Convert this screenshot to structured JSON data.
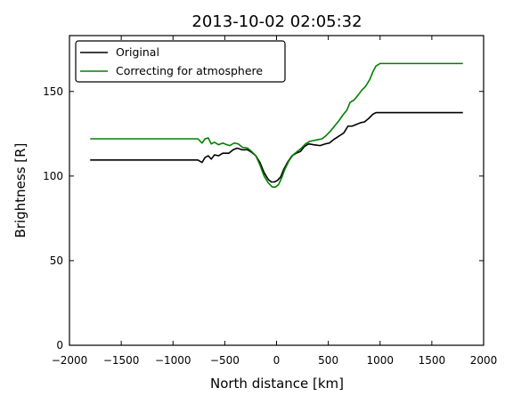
{
  "chart_data": {
    "type": "line",
    "title": "2013-10-02 02:05:32",
    "xlabel": "North distance [km]",
    "ylabel": "Brightness [R]",
    "xlim": [
      -2000,
      2000
    ],
    "ylim": [
      0,
      183
    ],
    "xticks": [
      -2000,
      -1500,
      -1000,
      -500,
      0,
      500,
      1000,
      1500,
      2000
    ],
    "xtick_labels": [
      "−2000",
      "−1500",
      "−1000",
      "−500",
      "0",
      "500",
      "1000",
      "1500",
      "2000"
    ],
    "yticks": [
      0,
      50,
      100,
      150
    ],
    "ytick_labels": [
      "0",
      "50",
      "100",
      "150"
    ],
    "grid": false,
    "legend_position": "top-left",
    "series": [
      {
        "name": "Original",
        "color": "#000000",
        "points": [
          [
            -1800,
            109.5
          ],
          [
            -760,
            109.5
          ],
          [
            -720,
            108
          ],
          [
            -690,
            111
          ],
          [
            -660,
            112
          ],
          [
            -630,
            110
          ],
          [
            -600,
            112.5
          ],
          [
            -560,
            112
          ],
          [
            -520,
            113.5
          ],
          [
            -460,
            113.5
          ],
          [
            -420,
            115.5
          ],
          [
            -380,
            116.5
          ],
          [
            -330,
            115.5
          ],
          [
            -280,
            115.5
          ],
          [
            -240,
            114
          ],
          [
            -200,
            112
          ],
          [
            -160,
            108
          ],
          [
            -120,
            102
          ],
          [
            -80,
            98
          ],
          [
            -50,
            96.5
          ],
          [
            -20,
            96.5
          ],
          [
            10,
            97.5
          ],
          [
            40,
            99.5
          ],
          [
            70,
            104
          ],
          [
            110,
            108.5
          ],
          [
            150,
            112
          ],
          [
            190,
            113.5
          ],
          [
            230,
            114.5
          ],
          [
            270,
            117.5
          ],
          [
            310,
            119
          ],
          [
            360,
            118.5
          ],
          [
            420,
            118
          ],
          [
            470,
            119
          ],
          [
            510,
            119.5
          ],
          [
            550,
            121.5
          ],
          [
            600,
            123.5
          ],
          [
            650,
            125.5
          ],
          [
            690,
            129.5
          ],
          [
            730,
            129.5
          ],
          [
            770,
            130.5
          ],
          [
            810,
            131.5
          ],
          [
            850,
            132
          ],
          [
            890,
            134
          ],
          [
            930,
            136.5
          ],
          [
            960,
            137.5
          ],
          [
            1000,
            137.5
          ],
          [
            1050,
            137.5
          ],
          [
            1800,
            137.5
          ]
        ]
      },
      {
        "name": "Correcting for atmosphere",
        "color": "#008000",
        "points": [
          [
            -1800,
            122
          ],
          [
            -760,
            122
          ],
          [
            -720,
            119.5
          ],
          [
            -690,
            122
          ],
          [
            -660,
            122.5
          ],
          [
            -630,
            119
          ],
          [
            -600,
            120
          ],
          [
            -560,
            118.5
          ],
          [
            -520,
            119.5
          ],
          [
            -480,
            118.5
          ],
          [
            -450,
            118
          ],
          [
            -410,
            119.5
          ],
          [
            -370,
            119
          ],
          [
            -330,
            117
          ],
          [
            -280,
            116.5
          ],
          [
            -240,
            114.5
          ],
          [
            -200,
            112
          ],
          [
            -160,
            106.5
          ],
          [
            -120,
            100
          ],
          [
            -80,
            96
          ],
          [
            -40,
            93.5
          ],
          [
            -10,
            93.5
          ],
          [
            20,
            95
          ],
          [
            50,
            99
          ],
          [
            80,
            104
          ],
          [
            120,
            109
          ],
          [
            160,
            112.5
          ],
          [
            200,
            114.5
          ],
          [
            240,
            116.5
          ],
          [
            280,
            119
          ],
          [
            320,
            120.5
          ],
          [
            360,
            121
          ],
          [
            400,
            121.5
          ],
          [
            440,
            122
          ],
          [
            480,
            124
          ],
          [
            520,
            126.5
          ],
          [
            560,
            129.5
          ],
          [
            600,
            132.5
          ],
          [
            640,
            136
          ],
          [
            680,
            139
          ],
          [
            710,
            143.5
          ],
          [
            750,
            145
          ],
          [
            790,
            148
          ],
          [
            820,
            150.5
          ],
          [
            860,
            153
          ],
          [
            900,
            157
          ],
          [
            930,
            161.5
          ],
          [
            960,
            165
          ],
          [
            1000,
            166.5
          ],
          [
            1050,
            166.5
          ],
          [
            1800,
            166.5
          ]
        ]
      }
    ]
  }
}
